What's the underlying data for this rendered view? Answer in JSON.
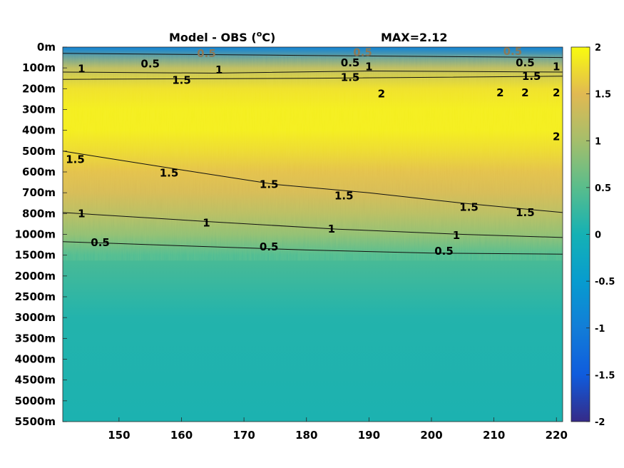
{
  "chart_data": {
    "type": "heatmap",
    "title": "Model - OBS (°C)",
    "title_parts": {
      "prefix": "Model - OBS (",
      "superscript": "o",
      "suffix": "C)"
    },
    "max_label": "MAX=2.12",
    "x_ticks": [
      "150",
      "160",
      "170",
      "180",
      "190",
      "200",
      "210",
      "220"
    ],
    "x_tick_values": [
      150,
      160,
      170,
      180,
      190,
      200,
      210,
      220
    ],
    "xlim": [
      141,
      221
    ],
    "y_ticks": [
      "0m",
      "100m",
      "200m",
      "300m",
      "400m",
      "500m",
      "600m",
      "700m",
      "800m",
      "1000m",
      "1500m",
      "2000m",
      "2500m",
      "3000m",
      "3500m",
      "4000m",
      "4500m",
      "5000m",
      "5500m"
    ],
    "colorbar": {
      "ticks": [
        "2",
        "1.5",
        "1",
        "0.5",
        "0",
        "-0.5",
        "-1",
        "-1.5",
        "-2"
      ],
      "tick_values": [
        2,
        1.5,
        1,
        0.5,
        0,
        -0.5,
        -1,
        -1.5,
        -2
      ],
      "range": [
        -2,
        2
      ],
      "colormap": "parula"
    },
    "field_profile": [
      {
        "depth": "0m",
        "value": -0.9
      },
      {
        "depth": "100m",
        "value": 1.2
      },
      {
        "depth": "200m",
        "value": 1.8
      },
      {
        "depth": "300m",
        "value": 1.9
      },
      {
        "depth": "400m",
        "value": 1.9
      },
      {
        "depth": "500m",
        "value": 1.75
      },
      {
        "depth": "600m",
        "value": 1.55
      },
      {
        "depth": "700m",
        "value": 1.4
      },
      {
        "depth": "800m",
        "value": 1.15
      },
      {
        "depth": "1000m",
        "value": 0.85
      },
      {
        "depth": "1500m",
        "value": 0.4
      },
      {
        "depth": "2000m",
        "value": 0.3
      },
      {
        "depth": "2500m",
        "value": 0.2
      },
      {
        "depth": "3000m",
        "value": 0.1
      },
      {
        "depth": "5500m",
        "value": 0.05
      }
    ],
    "contours": [
      {
        "level": 0.5,
        "points": [
          [
            141,
            0.3
          ],
          [
            160,
            0.35
          ],
          [
            180,
            0.4
          ],
          [
            200,
            0.45
          ],
          [
            221,
            0.5
          ]
        ]
      },
      {
        "level": 1,
        "points": [
          [
            141,
            1.2
          ],
          [
            165,
            1.25
          ],
          [
            190,
            1.15
          ],
          [
            221,
            1.2
          ]
        ]
      },
      {
        "level": 1.5,
        "points": [
          [
            141,
            1.55
          ],
          [
            180,
            1.5
          ],
          [
            221,
            1.4
          ]
        ]
      },
      {
        "level": 1.5,
        "points": [
          [
            141,
            5.0
          ],
          [
            160,
            5.9
          ],
          [
            175,
            6.6
          ],
          [
            190,
            7.0
          ],
          [
            205,
            7.5
          ],
          [
            221,
            7.95
          ]
        ]
      },
      {
        "level": 1,
        "points": [
          [
            141,
            7.95
          ],
          [
            165,
            8.4
          ],
          [
            185,
            8.75
          ],
          [
            205,
            9.0
          ],
          [
            221,
            9.15
          ]
        ]
      },
      {
        "level": 0.5,
        "points": [
          [
            141,
            9.35
          ],
          [
            160,
            9.55
          ],
          [
            180,
            9.75
          ],
          [
            200,
            9.9
          ],
          [
            221,
            9.95
          ]
        ]
      }
    ],
    "contour_labels": [
      {
        "text": "0.5",
        "x": 164,
        "y": 0.3,
        "faint": true
      },
      {
        "text": "0.5",
        "x": 189,
        "y": 0.25,
        "faint": true
      },
      {
        "text": "0.5",
        "x": 213,
        "y": 0.2,
        "faint": true
      },
      {
        "text": "1",
        "x": 144,
        "y": 1.05
      },
      {
        "text": "0.5",
        "x": 155,
        "y": 0.8
      },
      {
        "text": "1",
        "x": 166,
        "y": 1.1
      },
      {
        "text": "0.5",
        "x": 187,
        "y": 0.75
      },
      {
        "text": "1",
        "x": 190,
        "y": 0.95
      },
      {
        "text": "0.5",
        "x": 215,
        "y": 0.75
      },
      {
        "text": "1",
        "x": 220,
        "y": 0.95
      },
      {
        "text": "1.5",
        "x": 160,
        "y": 1.6
      },
      {
        "text": "1.5",
        "x": 187,
        "y": 1.45
      },
      {
        "text": "1.5",
        "x": 216,
        "y": 1.4
      },
      {
        "text": "2",
        "x": 192,
        "y": 2.25
      },
      {
        "text": "2",
        "x": 211,
        "y": 2.2
      },
      {
        "text": "2",
        "x": 215,
        "y": 2.2
      },
      {
        "text": "2",
        "x": 220,
        "y": 2.2
      },
      {
        "text": "2",
        "x": 220,
        "y": 4.3
      },
      {
        "text": "1.5",
        "x": 143,
        "y": 5.4
      },
      {
        "text": "1.5",
        "x": 158,
        "y": 6.05
      },
      {
        "text": "1.5",
        "x": 174,
        "y": 6.6
      },
      {
        "text": "1.5",
        "x": 186,
        "y": 7.15
      },
      {
        "text": "1.5",
        "x": 206,
        "y": 7.7
      },
      {
        "text": "1.5",
        "x": 215,
        "y": 7.95
      },
      {
        "text": "1",
        "x": 144,
        "y": 8.0
      },
      {
        "text": "1",
        "x": 164,
        "y": 8.45
      },
      {
        "text": "1",
        "x": 184,
        "y": 8.75
      },
      {
        "text": "1",
        "x": 204,
        "y": 9.05
      },
      {
        "text": "0.5",
        "x": 147,
        "y": 9.4
      },
      {
        "text": "0.5",
        "x": 174,
        "y": 9.6
      },
      {
        "text": "0.5",
        "x": 202,
        "y": 9.8
      }
    ]
  }
}
